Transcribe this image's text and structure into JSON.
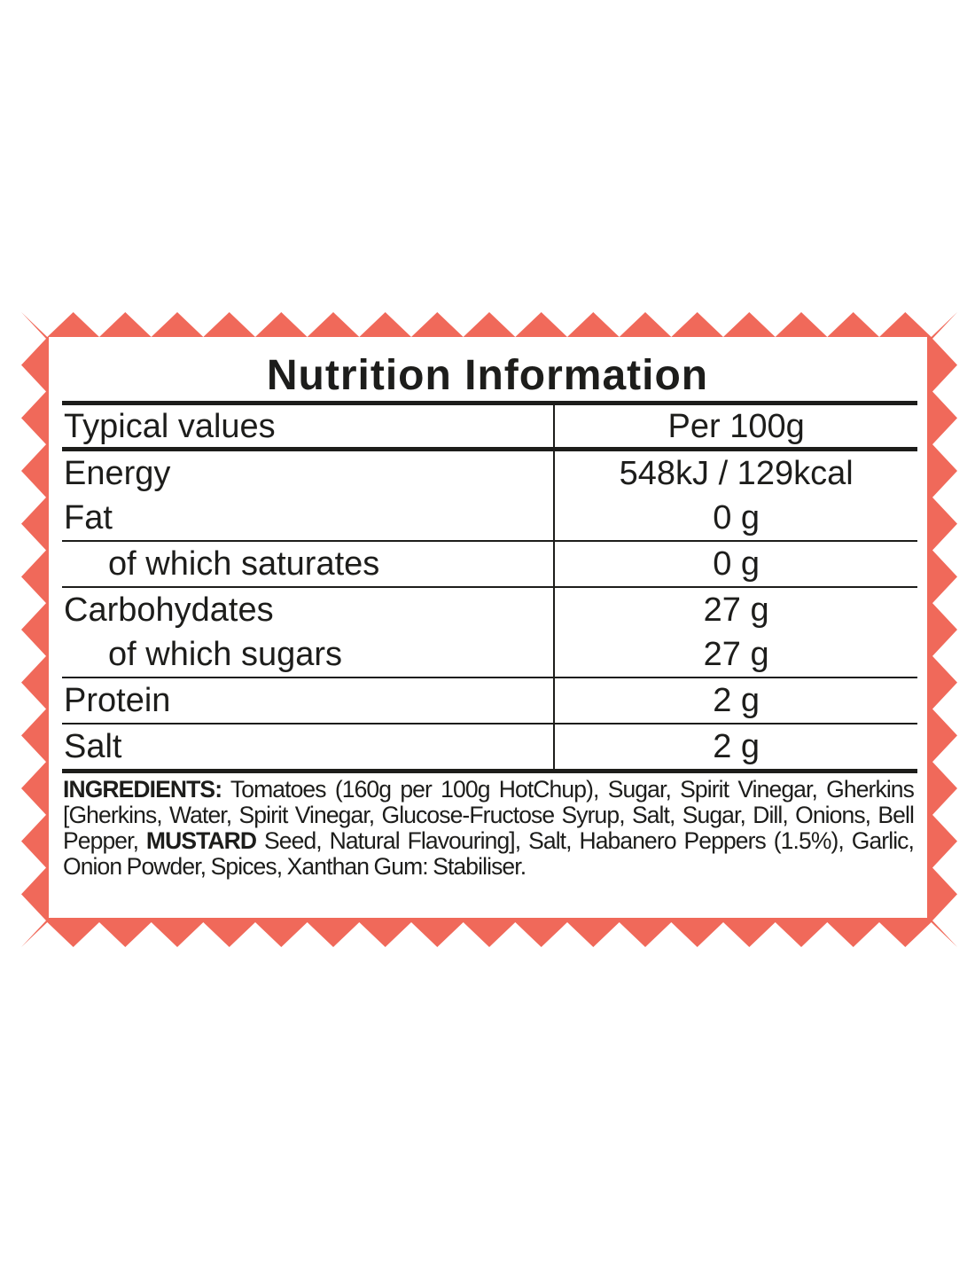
{
  "colors": {
    "border": "#f0695a",
    "text": "#1d1d1b"
  },
  "title": "Nutrition Information",
  "table": {
    "header": {
      "label": "Typical values",
      "value": "Per 100g"
    },
    "rows": [
      {
        "label": "Energy",
        "value": "548kJ / 129kcal",
        "sub": false,
        "line": false
      },
      {
        "label": "Fat",
        "value": "0 g",
        "sub": false,
        "line": true
      },
      {
        "label": "of which saturates",
        "value": "0 g",
        "sub": true,
        "line": true
      },
      {
        "label": "Carbohydates",
        "value": "27 g",
        "sub": false,
        "line": false
      },
      {
        "label": "of which sugars",
        "value": "27 g",
        "sub": true,
        "line": true
      },
      {
        "label": "Protein",
        "value": "2 g",
        "sub": false,
        "line": true
      },
      {
        "label": "Salt",
        "value": "2 g",
        "sub": false,
        "line": false
      }
    ]
  },
  "ingredients": {
    "heading": "INGREDIENTS:",
    "text_before": " Tomatoes (160g per 100g HotChup), Sugar, Spirit Vinegar, Gherkins [Gherkins, Water, Spirit Vinegar, Glucose-Fructose Syrup, Salt, Sugar, Dill, Onions, Bell Pepper, ",
    "allergen": "MUSTARD",
    "text_after": " Seed, Natural Flavouring], Salt, Habanero Peppers (1.5%), Garlic, Onion Powder, Spices, Xanthan Gum: Stabiliser."
  }
}
